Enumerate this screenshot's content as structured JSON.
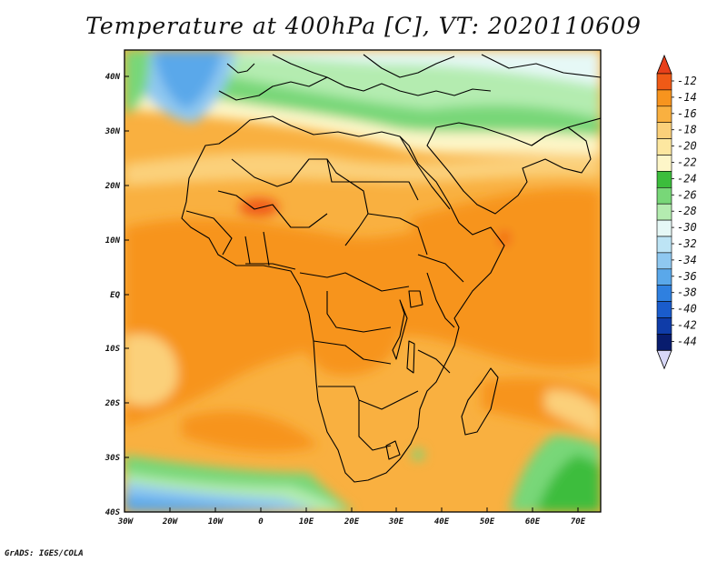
{
  "title": "Temperature at 400hPa [C], VT: 2020110609",
  "credit": "GrADS: IGES/COLA",
  "map": {
    "lat_labels": [
      "40N",
      "30N",
      "20N",
      "10N",
      "EQ",
      "10S",
      "20S",
      "30S",
      "40S"
    ],
    "lon_labels": [
      "30W",
      "20W",
      "10W",
      "0",
      "10E",
      "20E",
      "30E",
      "40E",
      "50E",
      "60E",
      "70E"
    ]
  },
  "colorbar": {
    "labels": [
      "-12",
      "-14",
      "-16",
      "-18",
      "-20",
      "-22",
      "-24",
      "-26",
      "-28",
      "-30",
      "-32",
      "-34",
      "-36",
      "-38",
      "-40",
      "-42",
      "-44"
    ],
    "colors": [
      "#f05a16",
      "#f7941e",
      "#f9b040",
      "#fbd07a",
      "#fde7a0",
      "#fdf6c8",
      "#3cbd3c",
      "#78d778",
      "#b4ecb0",
      "#e6f8f6",
      "#bde4f5",
      "#8fc8f0",
      "#5aa8ea",
      "#2f80e0",
      "#1a5ccc",
      "#0f3ca8",
      "#081c6e"
    ],
    "top_color": "#e8401a",
    "bottom_color": "#d8d8f8"
  }
}
